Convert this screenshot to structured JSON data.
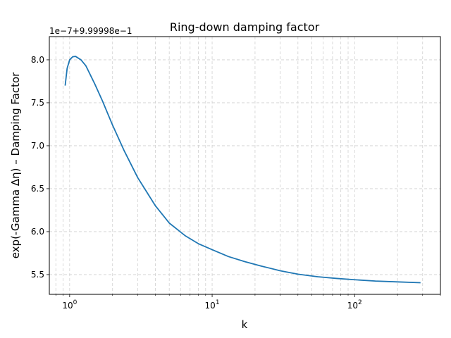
{
  "chart_data": {
    "type": "line",
    "title": "Ring-down damping factor",
    "xlabel": "k",
    "ylabel": "exp(-Gamma Δη) – Damping Factor",
    "offset_text": "1e−7+9.99998e−1",
    "x_scale": "log",
    "xlim": [
      0.72,
      400
    ],
    "ylim": [
      5.27,
      8.27
    ],
    "grid": true,
    "grid_style": "dashed",
    "line_color": "#1f77b4",
    "x_ticks": [
      {
        "value": 1,
        "base": "10",
        "exp": "0"
      },
      {
        "value": 10,
        "base": "10",
        "exp": "1"
      },
      {
        "value": 100,
        "base": "10",
        "exp": "2"
      }
    ],
    "y_ticks": [
      {
        "value": 5.5,
        "label": "5.5"
      },
      {
        "value": 6.0,
        "label": "6.0"
      },
      {
        "value": 6.5,
        "label": "6.5"
      },
      {
        "value": 7.0,
        "label": "7.0"
      },
      {
        "value": 7.5,
        "label": "7.5"
      },
      {
        "value": 8.0,
        "label": "8.0"
      }
    ],
    "series": [
      {
        "x": [
          0.93,
          0.96,
          1.0,
          1.05,
          1.1,
          1.2,
          1.3,
          1.5,
          1.7,
          2.0,
          2.4,
          3.0,
          4.0,
          5.0,
          6.5,
          8.0,
          10,
          13,
          17,
          22,
          30,
          40,
          55,
          75,
          100,
          140,
          200,
          290
        ],
        "y": [
          7.7,
          7.9,
          8.0,
          8.035,
          8.04,
          8.0,
          7.93,
          7.72,
          7.52,
          7.24,
          6.95,
          6.63,
          6.3,
          6.1,
          5.95,
          5.86,
          5.79,
          5.71,
          5.65,
          5.6,
          5.545,
          5.505,
          5.475,
          5.455,
          5.44,
          5.425,
          5.415,
          5.405
        ]
      }
    ]
  }
}
